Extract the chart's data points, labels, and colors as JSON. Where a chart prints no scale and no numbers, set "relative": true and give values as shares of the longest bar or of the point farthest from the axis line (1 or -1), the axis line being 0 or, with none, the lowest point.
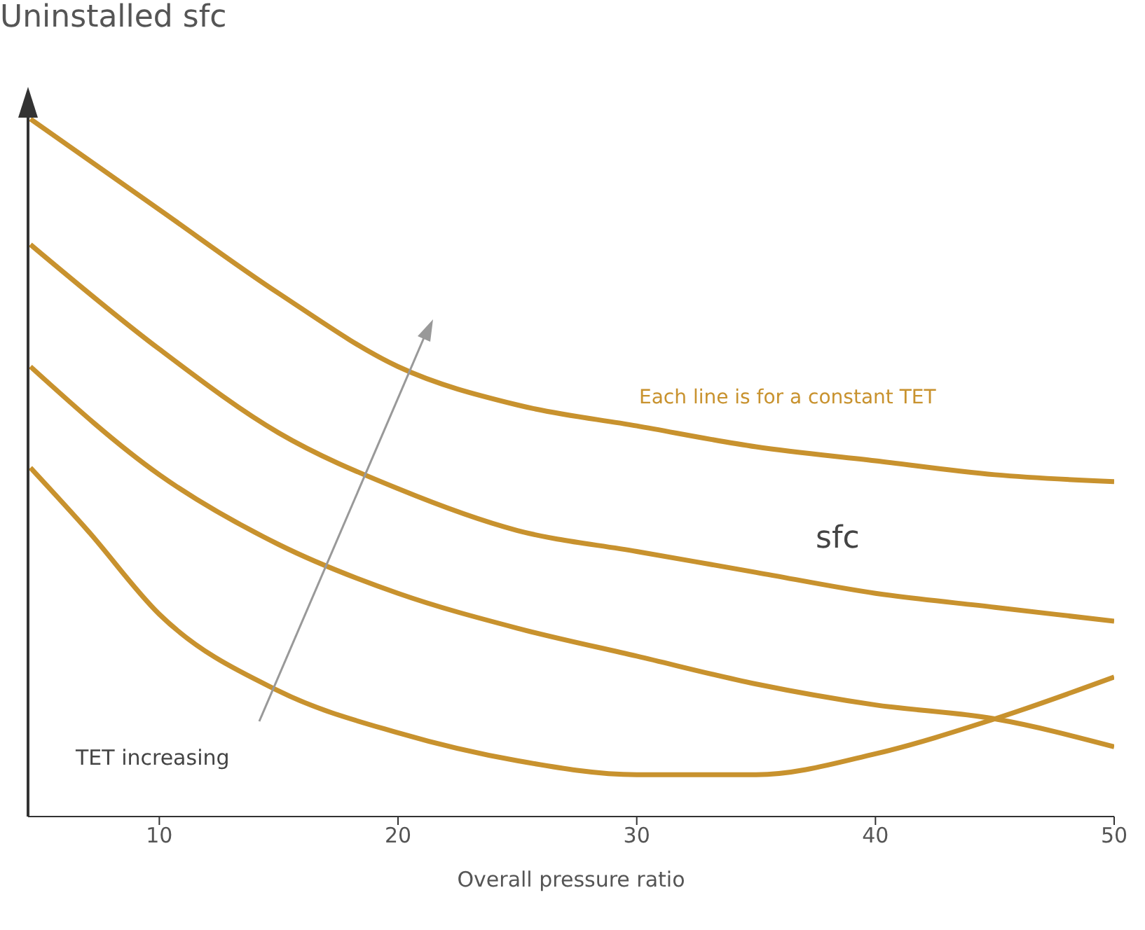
{
  "chart_data": {
    "type": "line",
    "ylabel": "Uninstalled sfc",
    "xlabel": "Overall pressure ratio",
    "relative": true,
    "xlim": [
      4.5,
      50
    ],
    "xticks": [
      10,
      20,
      30,
      40,
      50
    ],
    "marker": "none",
    "line_style": "solid",
    "annotations": [
      "Each line is for a constant TET",
      "sfc",
      "TET increasing"
    ],
    "series": [
      {
        "color": "#c8922e",
        "x": [
          4.6,
          10,
          15,
          20,
          25,
          30,
          35,
          40,
          45,
          50
        ],
        "values": [
          1.0,
          0.87,
          0.75,
          0.645,
          0.59,
          0.56,
          0.53,
          0.51,
          0.49,
          0.48
        ]
      },
      {
        "color": "#c8922e",
        "x": [
          4.6,
          10,
          15,
          20,
          25,
          30,
          35,
          40,
          45,
          50
        ],
        "values": [
          0.82,
          0.67,
          0.55,
          0.47,
          0.41,
          0.38,
          0.35,
          0.32,
          0.3,
          0.28
        ]
      },
      {
        "color": "#c8922e",
        "x": [
          4.6,
          10,
          15,
          20,
          25,
          30,
          35,
          40,
          45,
          50
        ],
        "values": [
          0.645,
          0.49,
          0.39,
          0.32,
          0.27,
          0.23,
          0.19,
          0.16,
          0.14,
          0.1
        ]
      },
      {
        "color": "#c8922e",
        "x": [
          4.6,
          7,
          10,
          15,
          20,
          25,
          30,
          35,
          40,
          45,
          50
        ],
        "values": [
          0.5,
          0.41,
          0.29,
          0.18,
          0.12,
          0.08,
          0.06,
          0.06,
          0.09,
          0.14,
          0.2
        ]
      }
    ]
  }
}
